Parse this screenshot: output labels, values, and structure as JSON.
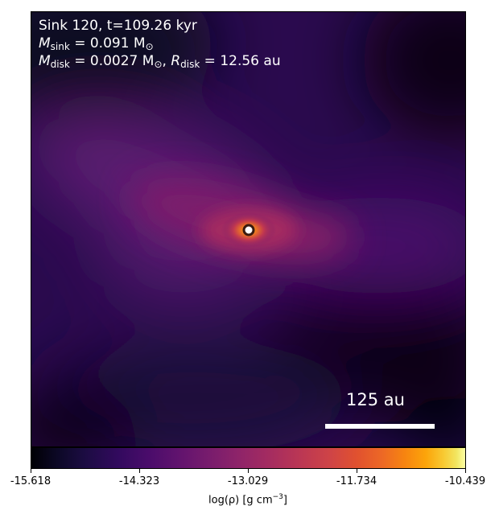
{
  "plot": {
    "line1": "Sink 120, t=109.26 kyr",
    "line2_symbol": "M",
    "line2_sub": "sink",
    "line2_value": " = 0.091 M",
    "line2_unit_sub": "⊙",
    "line3_symbol_a": "M",
    "line3_sub_a": "disk",
    "line3_value_a": " = 0.0027 M",
    "line3_unit_sub_a": "⊙",
    "line3_sep": ", ",
    "line3_symbol_b": "R",
    "line3_sub_b": "disk",
    "line3_value_b": " = 12.56 au",
    "scalebar_label": "125 au"
  },
  "colorbar": {
    "colormap": "inferno",
    "ticks": [
      "-15.618",
      "-14.323",
      "-13.029",
      "-11.734",
      "-10.439"
    ],
    "label_main": "log(ρ) [g cm",
    "label_exp": "−3",
    "label_end": "]"
  }
}
